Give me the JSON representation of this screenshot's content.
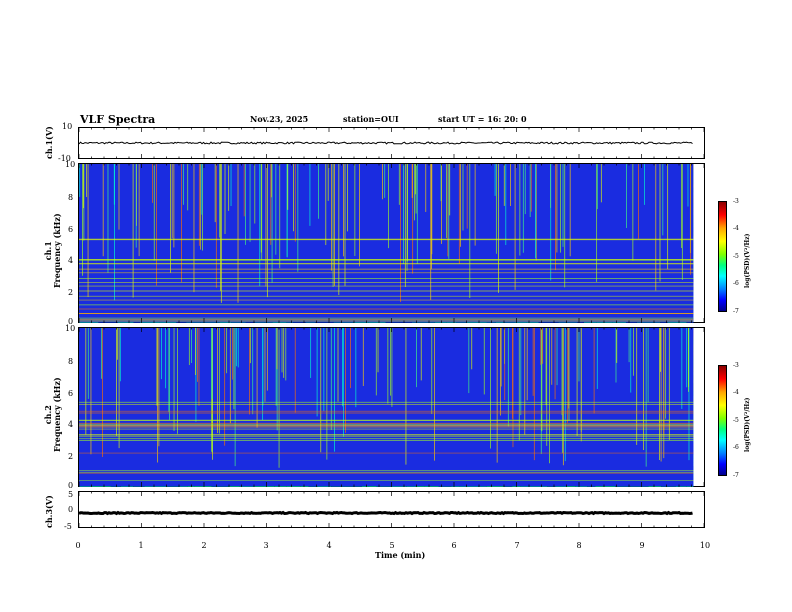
{
  "header": {
    "title": "VLF Spectra",
    "date": "Nov.23, 2025",
    "station": "station=OUI",
    "start": "start  UT =  16: 20: 0"
  },
  "chart_data": [
    {
      "type": "line",
      "name": "ch1-waveform",
      "ylabel": "ch.1(V)",
      "ylim": [
        -10,
        10
      ],
      "yticks": [
        "10",
        "-10"
      ],
      "level": 0,
      "noise": 0.6
    },
    {
      "type": "heatmap",
      "name": "ch1-spectrogram",
      "ylabel": "ch.1\nFrequency (kHz)",
      "ylim": [
        0,
        10
      ],
      "yticks": [
        "10",
        "8",
        "6",
        "4",
        "2",
        "0"
      ],
      "colorbar": {
        "label": "log(PSD)(V²/Hz)",
        "ticks": [
          "-3",
          "-4",
          "-5",
          "-6",
          "-7"
        ]
      }
    },
    {
      "type": "heatmap",
      "name": "ch2-spectrogram",
      "ylabel": "ch.2\nFrequency (kHz)",
      "ylim": [
        0,
        10
      ],
      "yticks": [
        "10",
        "8",
        "6",
        "4",
        "2",
        "0"
      ],
      "colorbar": {
        "label": "log(PSD)(V²/Hz)",
        "ticks": [
          "-3",
          "-4",
          "-5",
          "-6",
          "-7"
        ]
      }
    },
    {
      "type": "line",
      "name": "ch3-waveform",
      "ylabel": "ch.3(V)",
      "ylim": [
        -5,
        5
      ],
      "yticks": [
        "5",
        "0",
        "-5"
      ],
      "level": -1,
      "noise": 0.15
    }
  ],
  "xaxis": {
    "label": "Time (min)",
    "range": [
      0,
      10
    ],
    "data_end": 9.83,
    "ticks": [
      "0",
      "1",
      "2",
      "3",
      "4",
      "5",
      "6",
      "7",
      "8",
      "9",
      "10"
    ]
  },
  "colors": {
    "line": "#000000",
    "frame": "#000000"
  }
}
